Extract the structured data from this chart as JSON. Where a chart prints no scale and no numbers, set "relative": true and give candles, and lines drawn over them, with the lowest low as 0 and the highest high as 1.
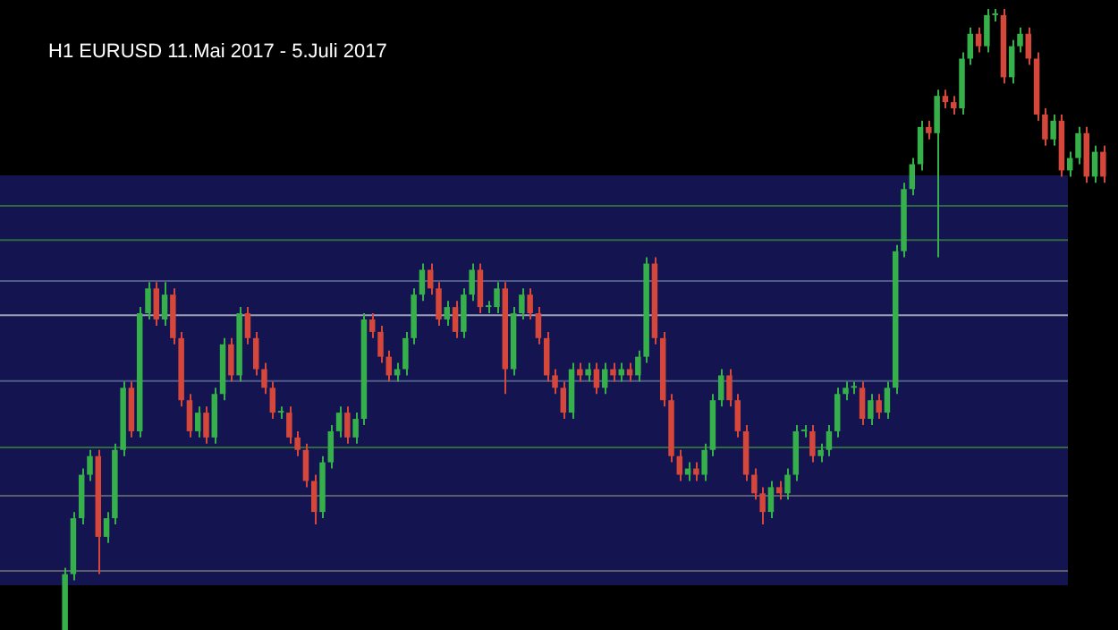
{
  "chart_data": {
    "type": "candlestick",
    "title": "H1 EURUSD 11.Mai 2017 - 5.Juli 2017",
    "relative": true,
    "tick_labels": false,
    "categories": [
      null,
      null,
      null,
      null,
      null,
      null,
      null,
      null,
      null,
      null,
      null,
      null,
      null,
      null,
      null,
      null,
      null,
      null,
      null,
      null,
      null,
      null,
      null,
      null,
      null,
      null,
      null,
      null,
      null,
      null,
      null,
      null,
      null,
      null,
      null,
      null,
      null,
      null,
      null,
      null,
      null,
      null,
      null,
      null,
      null,
      null,
      null,
      null,
      null,
      null,
      null,
      null,
      null,
      null,
      null,
      null,
      null,
      null,
      null,
      null,
      null,
      null,
      null,
      null,
      null,
      null,
      null,
      null,
      null,
      null,
      null,
      null,
      null,
      null,
      null,
      null,
      null,
      null,
      null,
      null,
      null,
      null,
      null,
      null,
      null,
      null,
      null,
      null,
      null,
      null,
      null,
      null,
      null,
      null,
      null,
      null,
      null,
      null,
      null,
      null,
      null,
      null,
      null,
      null,
      null,
      null,
      null,
      null,
      null,
      null,
      null,
      null,
      null,
      null,
      null,
      null,
      null,
      null,
      null,
      null,
      null,
      null,
      null,
      null,
      null,
      null
    ],
    "ohlc": [
      [
        0,
        0.1,
        0,
        0.09
      ],
      [
        0.09,
        0.19,
        0.08,
        0.18
      ],
      [
        0.18,
        0.26,
        0.17,
        0.25
      ],
      [
        0.25,
        0.29,
        0.24,
        0.28
      ],
      [
        0.28,
        0.29,
        0.09,
        0.15
      ],
      [
        0.15,
        0.19,
        0.14,
        0.18
      ],
      [
        0.18,
        0.3,
        0.17,
        0.29
      ],
      [
        0.29,
        0.4,
        0.28,
        0.39
      ],
      [
        0.39,
        0.4,
        0.31,
        0.32
      ],
      [
        0.32,
        0.52,
        0.31,
        0.51
      ],
      [
        0.51,
        0.56,
        0.5,
        0.55
      ],
      [
        0.55,
        0.56,
        0.49,
        0.5
      ],
      [
        0.5,
        0.56,
        0.49,
        0.54
      ],
      [
        0.54,
        0.55,
        0.46,
        0.47
      ],
      [
        0.47,
        0.48,
        0.36,
        0.37
      ],
      [
        0.37,
        0.38,
        0.31,
        0.32
      ],
      [
        0.32,
        0.36,
        0.31,
        0.35
      ],
      [
        0.35,
        0.36,
        0.3,
        0.31
      ],
      [
        0.31,
        0.39,
        0.3,
        0.38
      ],
      [
        0.38,
        0.47,
        0.37,
        0.46
      ],
      [
        0.46,
        0.47,
        0.4,
        0.41
      ],
      [
        0.41,
        0.52,
        0.4,
        0.51
      ],
      [
        0.51,
        0.52,
        0.46,
        0.47
      ],
      [
        0.47,
        0.48,
        0.41,
        0.42
      ],
      [
        0.42,
        0.43,
        0.38,
        0.39
      ],
      [
        0.39,
        0.4,
        0.34,
        0.35
      ],
      [
        0.35,
        0.36,
        0.34,
        0.35
      ],
      [
        0.35,
        0.36,
        0.3,
        0.31
      ],
      [
        0.31,
        0.32,
        0.28,
        0.29
      ],
      [
        0.29,
        0.3,
        0.23,
        0.24
      ],
      [
        0.24,
        0.25,
        0.17,
        0.19
      ],
      [
        0.19,
        0.28,
        0.18,
        0.27
      ],
      [
        0.27,
        0.33,
        0.26,
        0.32
      ],
      [
        0.32,
        0.36,
        0.31,
        0.35
      ],
      [
        0.35,
        0.36,
        0.3,
        0.31
      ],
      [
        0.31,
        0.35,
        0.3,
        0.34
      ],
      [
        0.34,
        0.51,
        0.33,
        0.5
      ],
      [
        0.5,
        0.51,
        0.47,
        0.48
      ],
      [
        0.48,
        0.49,
        0.43,
        0.44
      ],
      [
        0.44,
        0.45,
        0.4,
        0.41
      ],
      [
        0.41,
        0.43,
        0.4,
        0.42
      ],
      [
        0.42,
        0.48,
        0.41,
        0.47
      ],
      [
        0.47,
        0.55,
        0.46,
        0.54
      ],
      [
        0.54,
        0.59,
        0.53,
        0.58
      ],
      [
        0.58,
        0.59,
        0.54,
        0.55
      ],
      [
        0.55,
        0.56,
        0.49,
        0.5
      ],
      [
        0.5,
        0.53,
        0.49,
        0.52
      ],
      [
        0.52,
        0.53,
        0.47,
        0.48
      ],
      [
        0.48,
        0.55,
        0.47,
        0.54
      ],
      [
        0.54,
        0.59,
        0.53,
        0.58
      ],
      [
        0.58,
        0.59,
        0.51,
        0.52
      ],
      [
        0.52,
        0.53,
        0.51,
        0.52
      ],
      [
        0.52,
        0.56,
        0.51,
        0.55
      ],
      [
        0.55,
        0.56,
        0.38,
        0.42
      ],
      [
        0.42,
        0.52,
        0.41,
        0.51
      ],
      [
        0.51,
        0.55,
        0.5,
        0.54
      ],
      [
        0.54,
        0.55,
        0.5,
        0.51
      ],
      [
        0.51,
        0.52,
        0.46,
        0.47
      ],
      [
        0.47,
        0.48,
        0.4,
        0.41
      ],
      [
        0.41,
        0.42,
        0.38,
        0.39
      ],
      [
        0.39,
        0.4,
        0.34,
        0.35
      ],
      [
        0.35,
        0.43,
        0.34,
        0.42
      ],
      [
        0.42,
        0.43,
        0.4,
        0.41
      ],
      [
        0.41,
        0.43,
        0.4,
        0.42
      ],
      [
        0.42,
        0.43,
        0.38,
        0.39
      ],
      [
        0.39,
        0.43,
        0.38,
        0.42
      ],
      [
        0.42,
        0.43,
        0.4,
        0.41
      ],
      [
        0.41,
        0.43,
        0.4,
        0.42
      ],
      [
        0.42,
        0.43,
        0.4,
        0.41
      ],
      [
        0.41,
        0.45,
        0.4,
        0.44
      ],
      [
        0.44,
        0.6,
        0.43,
        0.59
      ],
      [
        0.59,
        0.6,
        0.46,
        0.47
      ],
      [
        0.47,
        0.48,
        0.36,
        0.37
      ],
      [
        0.37,
        0.38,
        0.27,
        0.28
      ],
      [
        0.28,
        0.29,
        0.24,
        0.25
      ],
      [
        0.25,
        0.27,
        0.24,
        0.26
      ],
      [
        0.26,
        0.27,
        0.24,
        0.25
      ],
      [
        0.25,
        0.3,
        0.24,
        0.29
      ],
      [
        0.29,
        0.38,
        0.28,
        0.37
      ],
      [
        0.37,
        0.42,
        0.36,
        0.41
      ],
      [
        0.41,
        0.42,
        0.36,
        0.37
      ],
      [
        0.37,
        0.38,
        0.31,
        0.32
      ],
      [
        0.32,
        0.33,
        0.24,
        0.25
      ],
      [
        0.25,
        0.26,
        0.21,
        0.22
      ],
      [
        0.22,
        0.23,
        0.17,
        0.19
      ],
      [
        0.19,
        0.24,
        0.18,
        0.23
      ],
      [
        0.23,
        0.24,
        0.21,
        0.22
      ],
      [
        0.22,
        0.26,
        0.21,
        0.25
      ],
      [
        0.25,
        0.33,
        0.24,
        0.32
      ],
      [
        0.32,
        0.33,
        0.31,
        0.32
      ],
      [
        0.32,
        0.33,
        0.27,
        0.28
      ],
      [
        0.28,
        0.3,
        0.27,
        0.29
      ],
      [
        0.29,
        0.33,
        0.28,
        0.32
      ],
      [
        0.32,
        0.39,
        0.31,
        0.38
      ],
      [
        0.38,
        0.4,
        0.37,
        0.39
      ],
      [
        0.39,
        0.4,
        0.38,
        0.39
      ],
      [
        0.39,
        0.4,
        0.33,
        0.34
      ],
      [
        0.34,
        0.38,
        0.33,
        0.37
      ],
      [
        0.37,
        0.38,
        0.34,
        0.35
      ],
      [
        0.35,
        0.4,
        0.34,
        0.39
      ],
      [
        0.39,
        0.62,
        0.38,
        0.61
      ],
      [
        0.61,
        0.72,
        0.6,
        0.71
      ],
      [
        0.71,
        0.76,
        0.7,
        0.75
      ],
      [
        0.75,
        0.82,
        0.74,
        0.81
      ],
      [
        0.81,
        0.82,
        0.79,
        0.8
      ],
      [
        0.8,
        0.87,
        0.6,
        0.86
      ],
      [
        0.86,
        0.87,
        0.84,
        0.85
      ],
      [
        0.85,
        0.86,
        0.83,
        0.84
      ],
      [
        0.84,
        0.93,
        0.83,
        0.92
      ],
      [
        0.92,
        0.97,
        0.91,
        0.96
      ],
      [
        0.96,
        0.97,
        0.93,
        0.94
      ],
      [
        0.94,
        1,
        0.93,
        0.99
      ],
      [
        0.99,
        1,
        0.98,
        0.99
      ],
      [
        0.99,
        1,
        0.88,
        0.89
      ],
      [
        0.89,
        0.95,
        0.88,
        0.94
      ],
      [
        0.94,
        0.97,
        0.93,
        0.96
      ],
      [
        0.96,
        0.97,
        0.91,
        0.92
      ],
      [
        0.92,
        0.93,
        0.82,
        0.83
      ],
      [
        0.83,
        0.84,
        0.78,
        0.79
      ],
      [
        0.79,
        0.83,
        0.78,
        0.82
      ],
      [
        0.82,
        0.83,
        0.73,
        0.74
      ],
      [
        0.74,
        0.77,
        0.73,
        0.76
      ],
      [
        0.76,
        0.81,
        0.75,
        0.8
      ],
      [
        0.8,
        0.81,
        0.72,
        0.73
      ],
      [
        0.73,
        0.78,
        0.72,
        0.77
      ],
      [
        0.77,
        0.78,
        0.72,
        0.73
      ]
    ],
    "colors": [
      "#35b04a",
      "#35b04a",
      "#35b04a",
      "#35b04a",
      "#d4473a",
      "#35b04a",
      "#35b04a",
      "#35b04a",
      "#d4473a",
      "#35b04a",
      "#35b04a",
      "#d4473a",
      "#35b04a",
      "#d4473a",
      "#d4473a",
      "#d4473a",
      "#35b04a",
      "#d4473a",
      "#35b04a",
      "#35b04a",
      "#d4473a",
      "#35b04a",
      "#d4473a",
      "#d4473a",
      "#d4473a",
      "#d4473a",
      "#35b04a",
      "#d4473a",
      "#d4473a",
      "#d4473a",
      "#d4473a",
      "#35b04a",
      "#35b04a",
      "#35b04a",
      "#d4473a",
      "#35b04a",
      "#35b04a",
      "#d4473a",
      "#d4473a",
      "#d4473a",
      "#35b04a",
      "#35b04a",
      "#35b04a",
      "#35b04a",
      "#d4473a",
      "#d4473a",
      "#35b04a",
      "#d4473a",
      "#35b04a",
      "#35b04a",
      "#d4473a",
      "#35b04a",
      "#35b04a",
      "#d4473a",
      "#35b04a",
      "#35b04a",
      "#d4473a",
      "#d4473a",
      "#d4473a",
      "#d4473a",
      "#d4473a",
      "#35b04a",
      "#d4473a",
      "#35b04a",
      "#d4473a",
      "#35b04a",
      "#d4473a",
      "#35b04a",
      "#d4473a",
      "#35b04a",
      "#35b04a",
      "#d4473a",
      "#d4473a",
      "#d4473a",
      "#d4473a",
      "#35b04a",
      "#d4473a",
      "#35b04a",
      "#35b04a",
      "#35b04a",
      "#d4473a",
      "#d4473a",
      "#d4473a",
      "#d4473a",
      "#d4473a",
      "#35b04a",
      "#d4473a",
      "#35b04a",
      "#35b04a",
      "#35b04a",
      "#d4473a",
      "#35b04a",
      "#35b04a",
      "#35b04a",
      "#35b04a",
      "#35b04a",
      "#d4473a",
      "#35b04a",
      "#d4473a",
      "#35b04a",
      "#35b04a",
      "#35b04a",
      "#35b04a",
      "#35b04a",
      "#d4473a",
      "#35b04a",
      "#d4473a",
      "#d4473a",
      "#35b04a",
      "#35b04a",
      "#d4473a",
      "#35b04a",
      "#35b04a",
      "#d4473a",
      "#35b04a",
      "#35b04a",
      "#d4473a",
      "#d4473a",
      "#d4473a",
      "#35b04a",
      "#d4473a",
      "#35b04a",
      "#35b04a",
      "#d4473a",
      "#35b04a",
      "#d4473a"
    ],
    "bands": [
      {
        "axis": "y",
        "from": 0.072,
        "to": 0.732,
        "color": "#141450"
      }
    ],
    "ref_lines": [
      {
        "axis": "y",
        "value": 0.683,
        "color": "#2f6a40"
      },
      {
        "axis": "y",
        "value": 0.628,
        "color": "#2f6a40"
      },
      {
        "axis": "y",
        "value": 0.562,
        "color": "#4d5d86"
      },
      {
        "axis": "y",
        "value": 0.507,
        "color": "#9ca2b4"
      },
      {
        "axis": "y",
        "value": 0.401,
        "color": "#4d5d86"
      },
      {
        "axis": "y",
        "value": 0.294,
        "color": "#2f6a40"
      },
      {
        "axis": "y",
        "value": 0.216,
        "color": "#5c5c6c"
      },
      {
        "axis": "y",
        "value": 0.095,
        "color": "#5c5c6c"
      }
    ]
  }
}
